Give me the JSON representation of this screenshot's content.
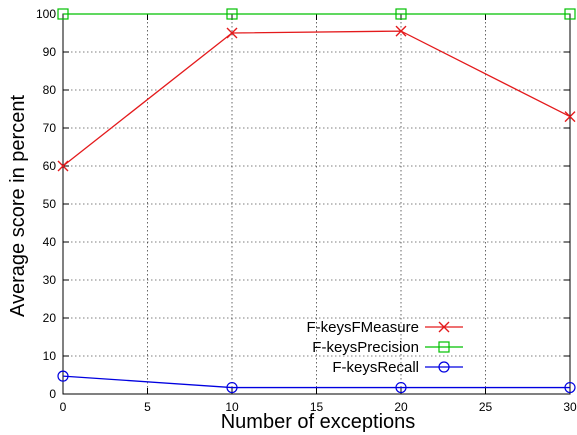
{
  "chart_data": {
    "type": "line",
    "xlabel": "Number of exceptions",
    "ylabel": "Average score  in percent",
    "xlim": [
      0,
      30
    ],
    "ylim": [
      0,
      100
    ],
    "xticks": [
      0,
      5,
      10,
      15,
      20,
      25,
      30
    ],
    "xtick_labels": [
      "0",
      "5",
      "10",
      "15",
      "20",
      "25",
      "30"
    ],
    "yticks": [
      0,
      10,
      20,
      30,
      40,
      50,
      60,
      70,
      80,
      90,
      100
    ],
    "ytick_labels": [
      "0",
      "10",
      "20",
      "30",
      "40",
      "50",
      "60",
      "70",
      "80",
      "90",
      "100"
    ],
    "grid": true,
    "legend_position": "bottom-right",
    "x": [
      0,
      10,
      20,
      30
    ],
    "series": [
      {
        "name": "F-keysFMeasure",
        "color": "#e41a1c",
        "marker": "x",
        "values": [
          60,
          95,
          95.5,
          73
        ]
      },
      {
        "name": "F-keysPrecision",
        "color": "#00c000",
        "marker": "square",
        "values": [
          100,
          100,
          100,
          100
        ]
      },
      {
        "name": "F-keysRecall",
        "color": "#0000e0",
        "marker": "circle",
        "values": [
          4.7,
          1.7,
          1.7,
          1.7
        ]
      }
    ]
  }
}
